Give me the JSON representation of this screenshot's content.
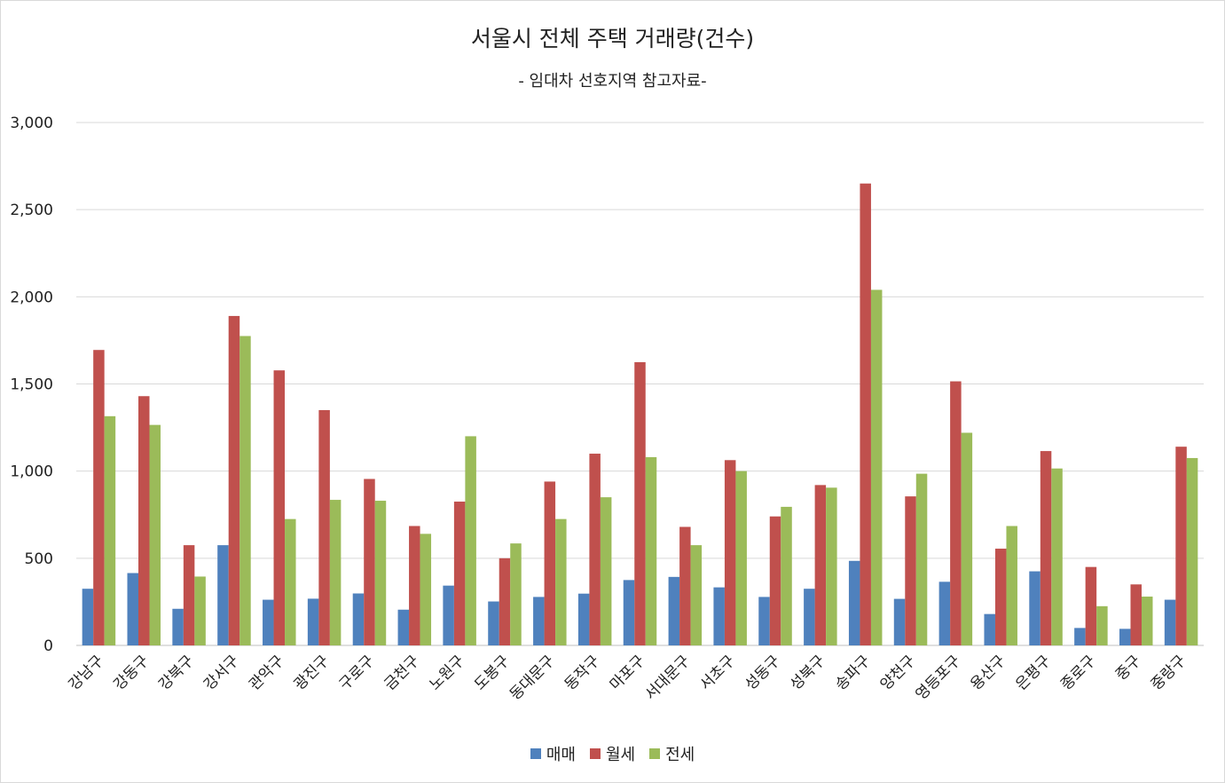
{
  "chart_data": {
    "type": "bar",
    "title": "서울시 전체 주택 거래량(건수)",
    "subtitle": "- 임대차 선호지역 참고자료-",
    "xlabel": "",
    "ylabel": "",
    "ylim": [
      0,
      3000
    ],
    "yticks": [
      0,
      500,
      1000,
      1500,
      2000,
      2500,
      3000
    ],
    "ytick_labels": [
      "0",
      "500",
      "1,000",
      "1,500",
      "2,000",
      "2,500",
      "3,000"
    ],
    "grid": true,
    "legend_position": "bottom",
    "categories": [
      "강남구",
      "강동구",
      "강북구",
      "강서구",
      "관악구",
      "광진구",
      "구로구",
      "금천구",
      "노원구",
      "도봉구",
      "동대문구",
      "동작구",
      "마포구",
      "서대문구",
      "서초구",
      "성동구",
      "성북구",
      "송파구",
      "양천구",
      "영등포구",
      "용산구",
      "은평구",
      "종로구",
      "중구",
      "중랑구"
    ],
    "series": [
      {
        "name": "매매",
        "color": "#4f81bd",
        "values": [
          325,
          415,
          210,
          575,
          262,
          268,
          298,
          205,
          343,
          252,
          278,
          297,
          375,
          393,
          333,
          278,
          325,
          485,
          267,
          365,
          180,
          425,
          100,
          95,
          262
        ]
      },
      {
        "name": "월세",
        "color": "#c0504d",
        "values": [
          1695,
          1430,
          575,
          1890,
          1578,
          1350,
          955,
          685,
          825,
          500,
          940,
          1100,
          1625,
          680,
          1063,
          740,
          920,
          2650,
          855,
          1515,
          555,
          1115,
          450,
          350,
          1140
        ]
      },
      {
        "name": "전세",
        "color": "#9bbb59",
        "values": [
          1315,
          1265,
          395,
          1775,
          725,
          835,
          830,
          640,
          1200,
          585,
          725,
          850,
          1080,
          575,
          1000,
          795,
          905,
          2040,
          985,
          1220,
          685,
          1015,
          225,
          280,
          1075
        ]
      }
    ]
  }
}
